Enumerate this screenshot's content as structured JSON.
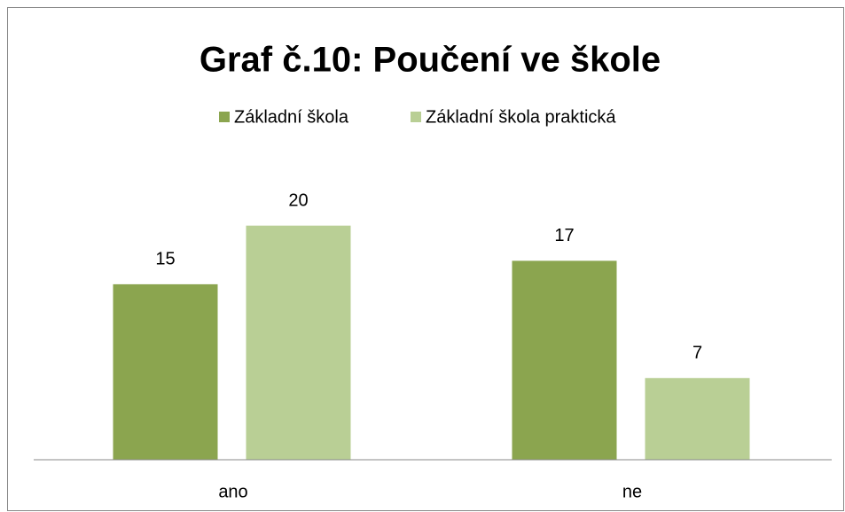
{
  "chart_data": {
    "type": "bar",
    "title": "Graf č.10: Poučení ve škole",
    "categories": [
      "ano",
      "ne"
    ],
    "series": [
      {
        "name": "Základní škola",
        "color": "#8ba54f",
        "values": [
          15,
          17
        ]
      },
      {
        "name": "Základní škola praktická",
        "color": "#b9cf95",
        "values": [
          20,
          7
        ]
      }
    ],
    "ylim": [
      0,
      25
    ],
    "legend": "top"
  }
}
